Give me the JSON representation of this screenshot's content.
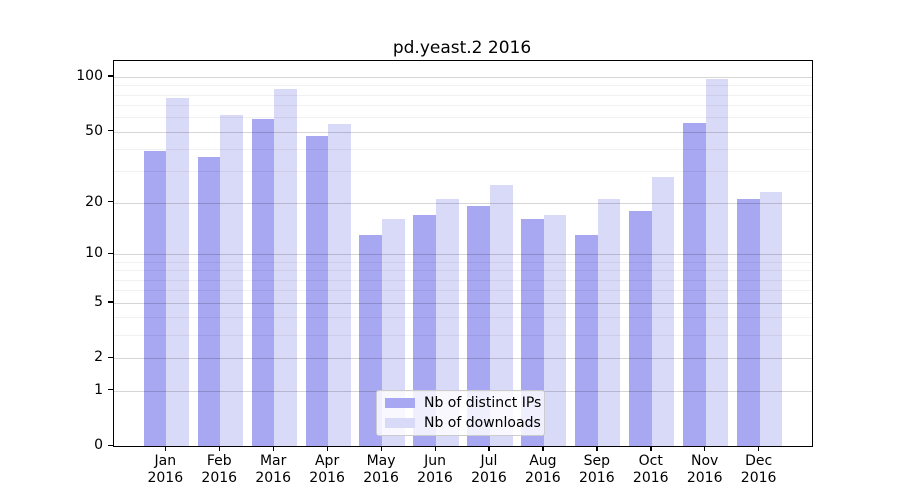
{
  "title": "pd.yeast.2 2016",
  "colors": {
    "distinct_ips": "#a7a7f2",
    "downloads": "#d9d9f8",
    "major_grid": "rgba(0,0,0,0.16)",
    "minor_grid": "rgba(0,0,0,0.055)",
    "axis": "#000000"
  },
  "legend": {
    "items": [
      {
        "label": "Nb of distinct IPs",
        "color_key": "distinct_ips"
      },
      {
        "label": "Nb of downloads",
        "color_key": "downloads"
      }
    ]
  },
  "y_axis": {
    "major_ticks": [
      100,
      50,
      20,
      10,
      5,
      2,
      1,
      0
    ],
    "minor_gridlines": [
      3,
      4,
      6,
      7,
      8,
      9,
      30,
      40,
      60,
      70,
      80,
      90
    ],
    "scale": "log1p"
  },
  "x_axis": {
    "tick_labels_line1": [
      "Jan",
      "Feb",
      "Mar",
      "Apr",
      "May",
      "Jun",
      "Jul",
      "Aug",
      "Sep",
      "Oct",
      "Nov",
      "Dec"
    ],
    "tick_labels_line2": "2016"
  },
  "chart_data": {
    "type": "bar",
    "title": "pd.yeast.2 2016",
    "categories": [
      "Jan 2016",
      "Feb 2016",
      "Mar 2016",
      "Apr 2016",
      "May 2016",
      "Jun 2016",
      "Jul 2016",
      "Aug 2016",
      "Sep 2016",
      "Oct 2016",
      "Nov 2016",
      "Dec 2016"
    ],
    "series": [
      {
        "name": "Nb of distinct IPs",
        "values": [
          39,
          36,
          59,
          47,
          13,
          17,
          19,
          16,
          13,
          18,
          56,
          21
        ]
      },
      {
        "name": "Nb of downloads",
        "values": [
          77,
          62,
          86,
          55,
          16,
          21,
          25,
          17,
          21,
          28,
          97,
          23
        ]
      }
    ],
    "xlabel": "",
    "ylabel": "",
    "yscale": "log1p",
    "ylim": [
      0,
      122
    ],
    "grid": true,
    "legend_position": "lower center"
  }
}
